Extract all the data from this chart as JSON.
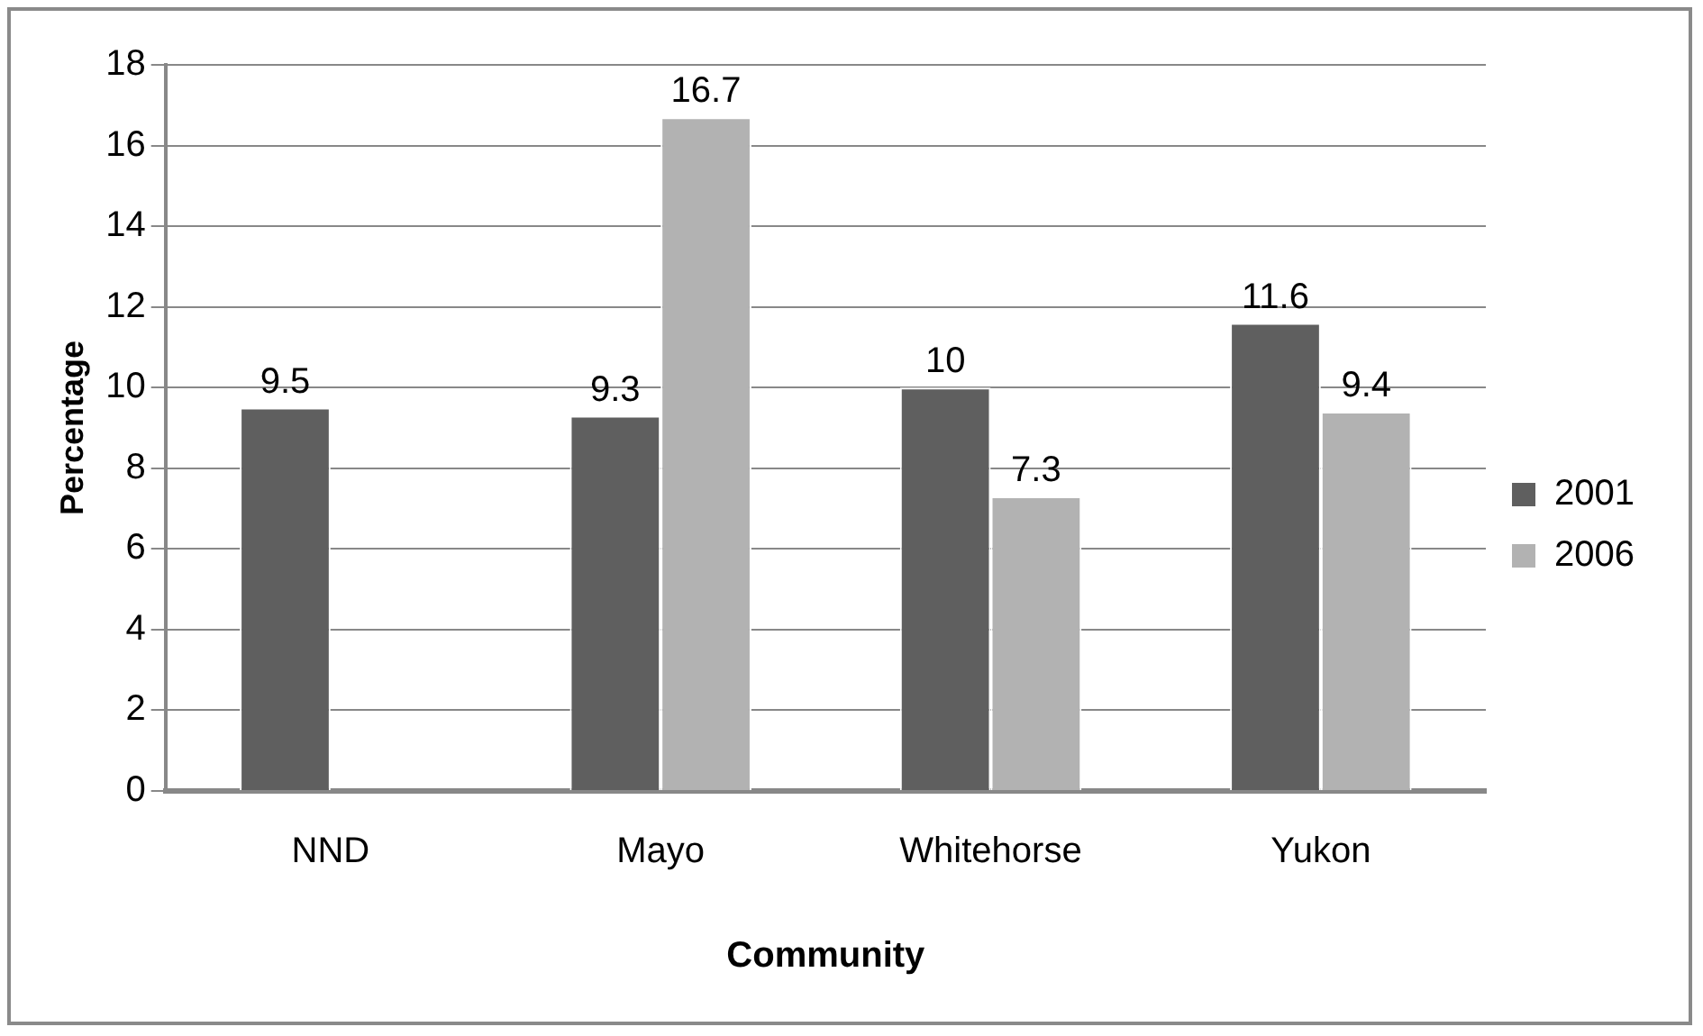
{
  "chart_data": {
    "type": "bar",
    "xlabel": "Community",
    "ylabel": "Percentage",
    "categories": [
      "NND",
      "Mayo",
      "Whitehorse",
      "Yukon"
    ],
    "series": [
      {
        "name": "2001",
        "color": "#5f5f5f",
        "values": [
          9.5,
          9.3,
          10,
          11.6
        ]
      },
      {
        "name": "2006",
        "color": "#b2b2b2",
        "values": [
          null,
          16.7,
          7.3,
          9.4
        ]
      }
    ],
    "ylim": [
      0,
      18
    ],
    "yticks": [
      0,
      2,
      4,
      6,
      8,
      10,
      12,
      14,
      16,
      18
    ],
    "grid": "y",
    "legend": "right",
    "data_labels": true
  }
}
